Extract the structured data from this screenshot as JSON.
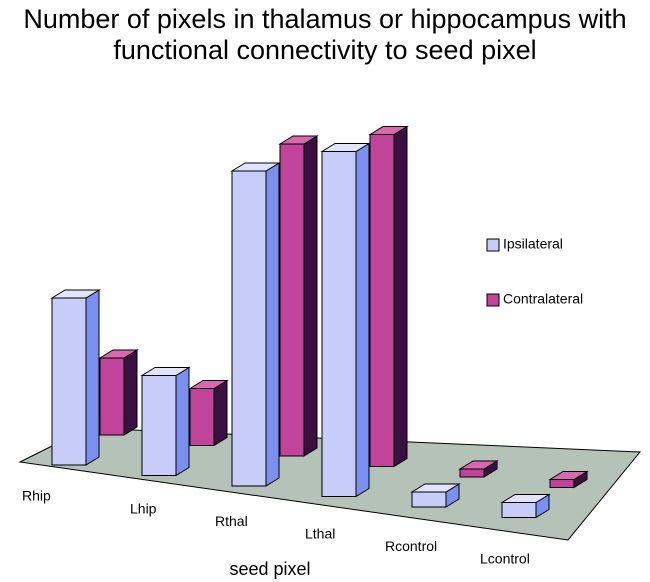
{
  "chart_data": {
    "type": "bar3d",
    "title": "Number of pixels in thalamus or hippocampus with functional connectivity to seed pixel",
    "x_label": "seed pixel",
    "categories": [
      "Rhip",
      "Lhip",
      "Rthal",
      "Lthal",
      "Rcontrol",
      "Lcontrol"
    ],
    "series": [
      {
        "name": "Ipsilateral",
        "color": "#c8ccf8",
        "values": [
          167,
          100,
          315,
          345,
          15,
          15
        ]
      },
      {
        "name": "Contralateral",
        "color": "#c0449a",
        "values": [
          77,
          57,
          312,
          332,
          8,
          8
        ]
      }
    ],
    "legend": "right"
  }
}
